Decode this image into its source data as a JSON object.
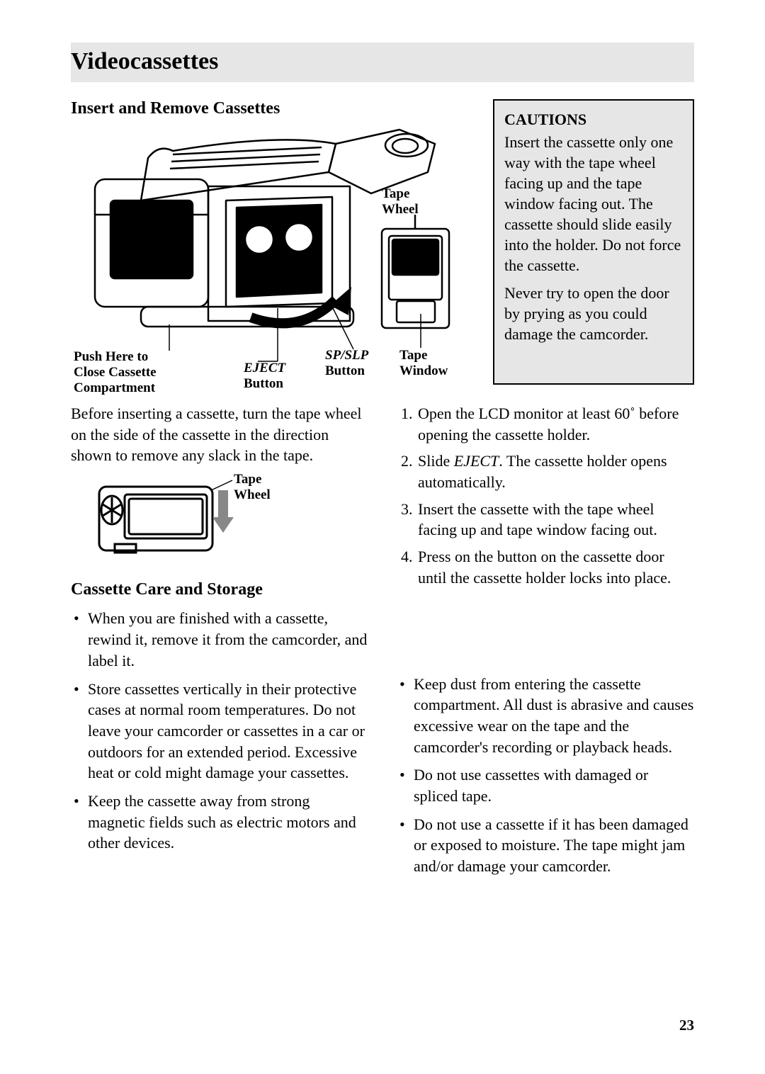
{
  "title": "Videocassettes",
  "section1_heading": "Insert and Remove Cassettes",
  "diagram_labels": {
    "tape_wheel_top": "Tape\nWheel",
    "push_here": "Push Here to\nClose Cassette\nCompartment",
    "eject_button": "EJECT\nButton",
    "spslp_button": "SP/SLP\nButton",
    "tape_window": "Tape\nWindow"
  },
  "cautions": {
    "heading": "CAUTIONS",
    "p1": "Insert the cassette only one way with the tape wheel facing up and the tape window facing out.  The cassette should slide easily into the holder.  Do not force the cassette.",
    "p2": "Never try to open the door by prying as you could damage the camcorder."
  },
  "intro_para": "Before inserting a cassette, turn the tape wheel on the side of the cassette in the direction shown to remove any slack in the tape.",
  "mini_label": "Tape Wheel",
  "steps_li1a": "Open the LCD monitor at least 60˚ before opening the cassette holder.",
  "steps_li2a": "Slide ",
  "steps_li2b": "EJECT",
  "steps_li2c": ".  The cassette holder opens automatically.",
  "steps_li3": "Insert the cassette with the tape wheel facing up and tape window facing out.",
  "steps_li4": "Press on the button on the cassette door until the cassette holder locks into  place.",
  "section2_heading": "Cassette Care and Storage",
  "care_left": [
    "When you are finished with a cassette, rewind it, remove it from the camcorder, and label it.",
    "Store cassettes vertically in their protective cases at normal room temperatures.  Do not leave your camcorder or cassettes in a car or outdoors for an extended period.  Excessive heat or cold might damage your cassettes.",
    "Keep the cassette away from strong magnetic fields such as electric motors and other devices."
  ],
  "care_right": [
    "Keep dust from entering the cassette compartment.  All dust is abrasive and causes excessive wear on the tape and the camcorder's recording or playback heads.",
    "Do not use cassettes with damaged or spliced tape.",
    "Do not use a cassette if it has been damaged or exposed to moisture.  The tape might jam and/or damage your camcorder."
  ],
  "page_number": "23",
  "colors": {
    "header_bg": "#e6e6e6",
    "caution_bg": "#e6e6e6",
    "text": "#000000",
    "page_bg": "#ffffff"
  }
}
